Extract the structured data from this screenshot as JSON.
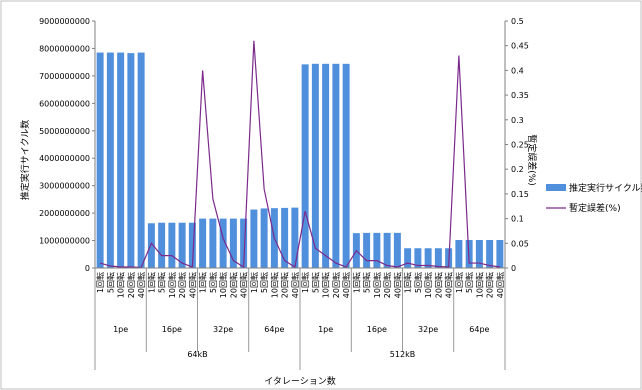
{
  "chart_data": {
    "type": "bar",
    "xlabel": "イタレーション数",
    "ylabel": "推定実行サイクル数",
    "y2label": "暫定誤差(%)",
    "ylim": [
      0,
      9000000000
    ],
    "y_ticks": [
      "0",
      "1000000000",
      "2000000000",
      "3000000000",
      "4000000000",
      "5000000000",
      "6000000000",
      "7000000000",
      "8000000000",
      "9000000000"
    ],
    "y2lim": [
      0,
      0.5
    ],
    "y2_ticks": [
      "0",
      "0.05",
      "0.1",
      "0.15",
      "0.2",
      "0.25",
      "0.3",
      "0.35",
      "0.4",
      "0.45",
      "0.5"
    ],
    "categories": [
      "1回転",
      "5回転",
      "10回転",
      "20回転",
      "40回転",
      "1回転",
      "5回転",
      "10回転",
      "20回転",
      "40回転",
      "1回転",
      "5回転",
      "10回転",
      "20回転",
      "40回転",
      "1回転",
      "5回転",
      "10回転",
      "20回転",
      "40回転",
      "1回転",
      "5回転",
      "10回転",
      "20回転",
      "40回転",
      "1回転",
      "5回転",
      "10回転",
      "20回転",
      "40回転",
      "1回転",
      "5回転",
      "10回転",
      "20回転",
      "40回転",
      "1回転",
      "5回転",
      "10回転",
      "20回転",
      "40回転"
    ],
    "pe_groups": [
      "1pe",
      "16pe",
      "32pe",
      "64pe",
      "1pe",
      "16pe",
      "32pe",
      "64pe"
    ],
    "size_groups": [
      "64kB",
      "512kB"
    ],
    "series": [
      {
        "name": "推定実行サイクル数",
        "axis": "left",
        "kind": "bar",
        "color": "#4f8fdc",
        "values": [
          7850000000,
          7850000000,
          7850000000,
          7830000000,
          7850000000,
          1630000000,
          1650000000,
          1650000000,
          1650000000,
          1650000000,
          1800000000,
          1800000000,
          1800000000,
          1800000000,
          1800000000,
          2130000000,
          2170000000,
          2180000000,
          2190000000,
          2200000000,
          7420000000,
          7440000000,
          7440000000,
          7440000000,
          7440000000,
          1270000000,
          1280000000,
          1280000000,
          1280000000,
          1280000000,
          720000000,
          720000000,
          720000000,
          720000000,
          720000000,
          1020000000,
          1020000000,
          1020000000,
          1020000000,
          1020000000
        ]
      },
      {
        "name": "暫定誤差(%)",
        "axis": "right",
        "kind": "line",
        "color": "#7b2a8c",
        "values": [
          0.01,
          0.004,
          0.002,
          0.002,
          0.001,
          0.05,
          0.025,
          0.025,
          0.01,
          0.002,
          0.4,
          0.14,
          0.06,
          0.015,
          0.002,
          0.46,
          0.16,
          0.06,
          0.015,
          0.002,
          0.115,
          0.04,
          0.025,
          0.01,
          0.002,
          0.035,
          0.015,
          0.015,
          0.005,
          0.002,
          0.01,
          0.005,
          0.005,
          0.003,
          0.002,
          0.43,
          0.01,
          0.01,
          0.005,
          0.002
        ]
      }
    ],
    "legend_position": "right",
    "grid": false
  }
}
